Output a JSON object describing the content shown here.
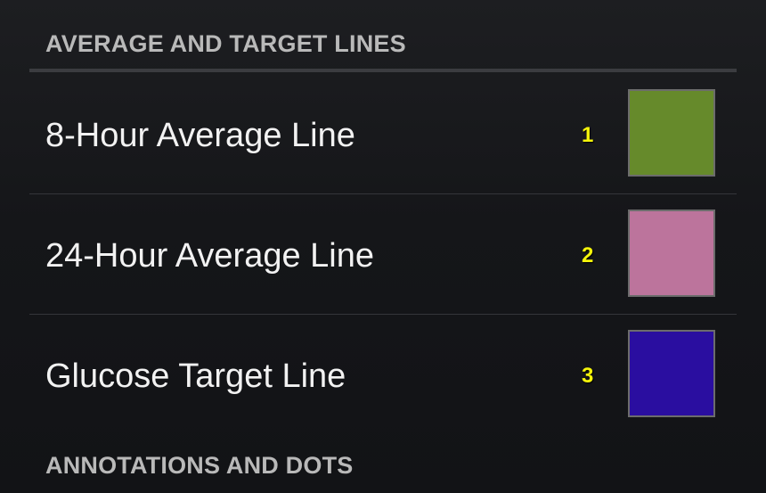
{
  "sections": {
    "average_and_target": "AVERAGE AND TARGET LINES",
    "annotations": "ANNOTATIONS AND DOTS"
  },
  "rows": [
    {
      "label": "8-Hour Average Line",
      "number": "1",
      "color": "#668a2b"
    },
    {
      "label": "24-Hour Average Line",
      "number": "2",
      "color": "#bc749c"
    },
    {
      "label": "Glucose Target Line",
      "number": "3",
      "color": "#2a0ea0"
    }
  ]
}
